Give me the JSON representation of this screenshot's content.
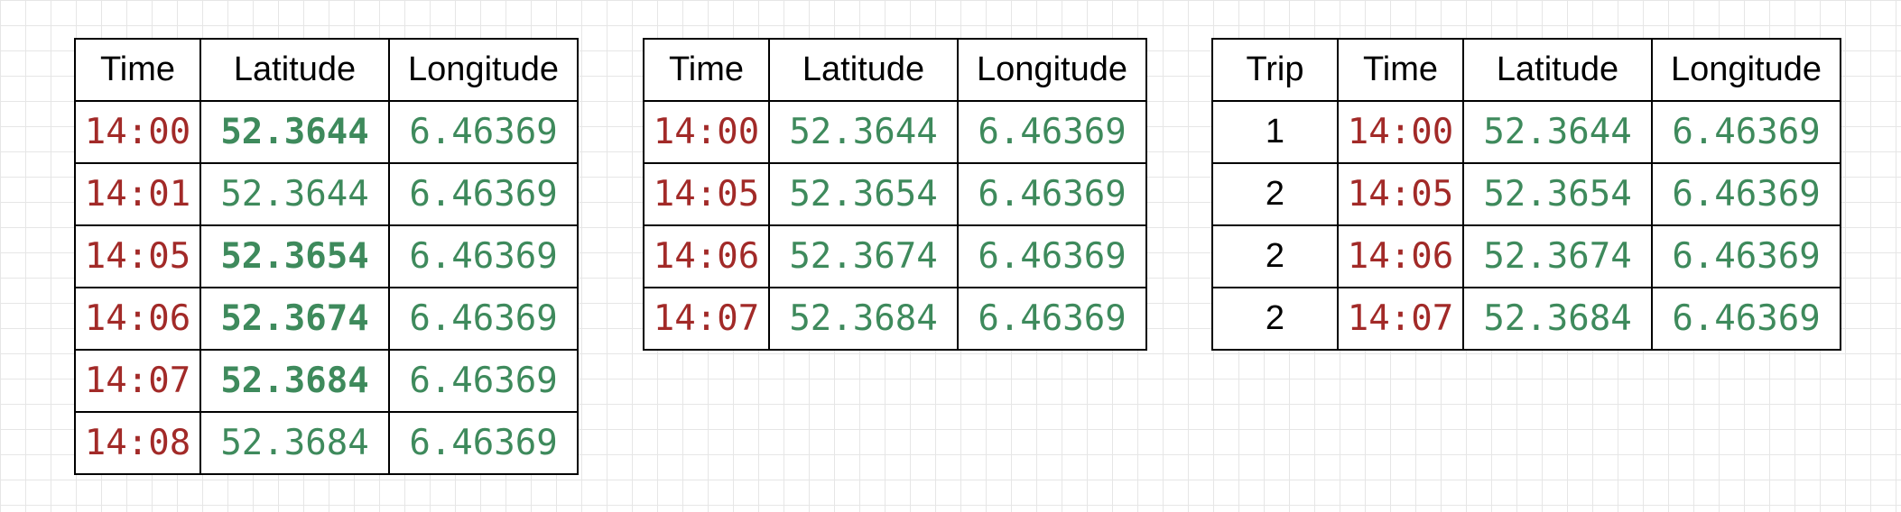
{
  "colors": {
    "time": "#a22a28",
    "coordinate": "#3e8a5c",
    "border": "#000000"
  },
  "table1": {
    "headers": [
      "Time",
      "Latitude",
      "Longitude"
    ],
    "rows": [
      {
        "time": "14:00",
        "lat": "52.3644",
        "lon": "6.46369",
        "lat_bold": true
      },
      {
        "time": "14:01",
        "lat": "52.3644",
        "lon": "6.46369",
        "lat_bold": false
      },
      {
        "time": "14:05",
        "lat": "52.3654",
        "lon": "6.46369",
        "lat_bold": true
      },
      {
        "time": "14:06",
        "lat": "52.3674",
        "lon": "6.46369",
        "lat_bold": true
      },
      {
        "time": "14:07",
        "lat": "52.3684",
        "lon": "6.46369",
        "lat_bold": true
      },
      {
        "time": "14:08",
        "lat": "52.3684",
        "lon": "6.46369",
        "lat_bold": false
      }
    ]
  },
  "table2": {
    "headers": [
      "Time",
      "Latitude",
      "Longitude"
    ],
    "rows": [
      {
        "time": "14:00",
        "lat": "52.3644",
        "lon": "6.46369"
      },
      {
        "time": "14:05",
        "lat": "52.3654",
        "lon": "6.46369"
      },
      {
        "time": "14:06",
        "lat": "52.3674",
        "lon": "6.46369"
      },
      {
        "time": "14:07",
        "lat": "52.3684",
        "lon": "6.46369"
      }
    ]
  },
  "table3": {
    "headers": [
      "Trip",
      "Time",
      "Latitude",
      "Longitude"
    ],
    "rows": [
      {
        "trip": "1",
        "time": "14:00",
        "lat": "52.3644",
        "lon": "6.46369"
      },
      {
        "trip": "2",
        "time": "14:05",
        "lat": "52.3654",
        "lon": "6.46369"
      },
      {
        "trip": "2",
        "time": "14:06",
        "lat": "52.3674",
        "lon": "6.46369"
      },
      {
        "trip": "2",
        "time": "14:07",
        "lat": "52.3684",
        "lon": "6.46369"
      }
    ]
  }
}
